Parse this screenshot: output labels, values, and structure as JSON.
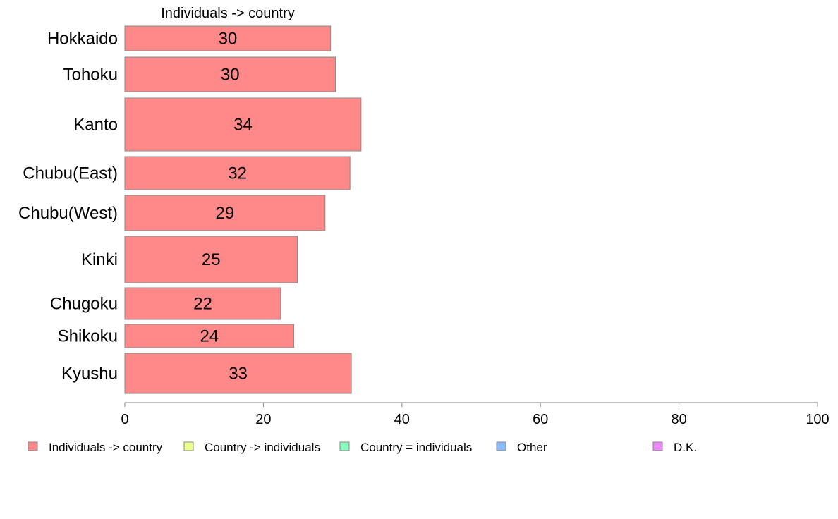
{
  "chart_data": {
    "type": "bar",
    "orientation": "horizontal",
    "title": "",
    "series_header": "Individuals -> country",
    "categories": [
      "Hokkaido",
      "Tohoku",
      "Kanto",
      "Chubu(East)",
      "Chubu(West)",
      "Kinki",
      "Chugoku",
      "Shikoku",
      "Kyushu"
    ],
    "series": [
      {
        "name": "Individuals -> country",
        "color": "#ff8888",
        "values": [
          30,
          30,
          34,
          32,
          29,
          25,
          22,
          24,
          33
        ],
        "exact_values": [
          29.7,
          30.4,
          34.1,
          32.5,
          28.9,
          24.9,
          22.5,
          24.4,
          32.7
        ]
      }
    ],
    "xlim": [
      0,
      100
    ],
    "xticks": [
      0,
      20,
      40,
      60,
      80,
      100
    ],
    "xlabel": "",
    "ylabel": "",
    "grid": false,
    "legend_position": "bottom",
    "legend": [
      {
        "label": "Individuals -> country",
        "color": "#ff8888"
      },
      {
        "label": "Country -> individuals",
        "color": "#eeff88"
      },
      {
        "label": "Country = individuals",
        "color": "#88ffbb"
      },
      {
        "label": "Other",
        "color": "#88bbff"
      },
      {
        "label": "D.K.",
        "color": "#ee88ff"
      }
    ]
  }
}
